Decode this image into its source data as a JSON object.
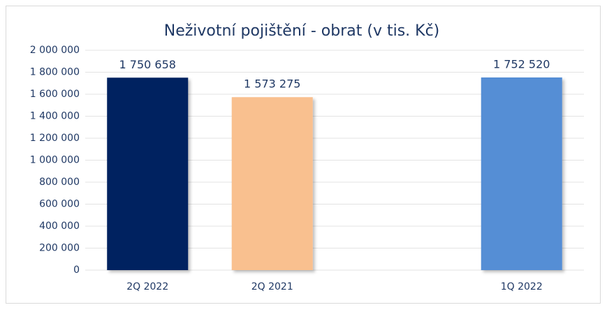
{
  "chart_data": {
    "type": "bar",
    "title": "Neživotní pojištění - obrat (v tis. Kč)",
    "categories": [
      "2Q 2022",
      "2Q 2021",
      null,
      "1Q 2022"
    ],
    "values": [
      1750658,
      1573275,
      null,
      1752520
    ],
    "value_labels": [
      "1 750 658",
      "1 573 275",
      null,
      "1 752 520"
    ],
    "colors": [
      "#002060",
      "#f9c08f",
      null,
      "#558ed5"
    ],
    "ylim": [
      0,
      2000000
    ],
    "yticks": [
      {
        "value": 0,
        "label": "0"
      },
      {
        "value": 200000,
        "label": "200 000"
      },
      {
        "value": 400000,
        "label": "400 000"
      },
      {
        "value": 600000,
        "label": "600 000"
      },
      {
        "value": 800000,
        "label": "800 000"
      },
      {
        "value": 1000000,
        "label": "1 000 000"
      },
      {
        "value": 1200000,
        "label": "1 200 000"
      },
      {
        "value": 1400000,
        "label": "1 400 000"
      },
      {
        "value": 1600000,
        "label": "1 600 000"
      },
      {
        "value": 1800000,
        "label": "1 800 000"
      },
      {
        "value": 2000000,
        "label": "2 000 000"
      }
    ],
    "grid": true
  }
}
